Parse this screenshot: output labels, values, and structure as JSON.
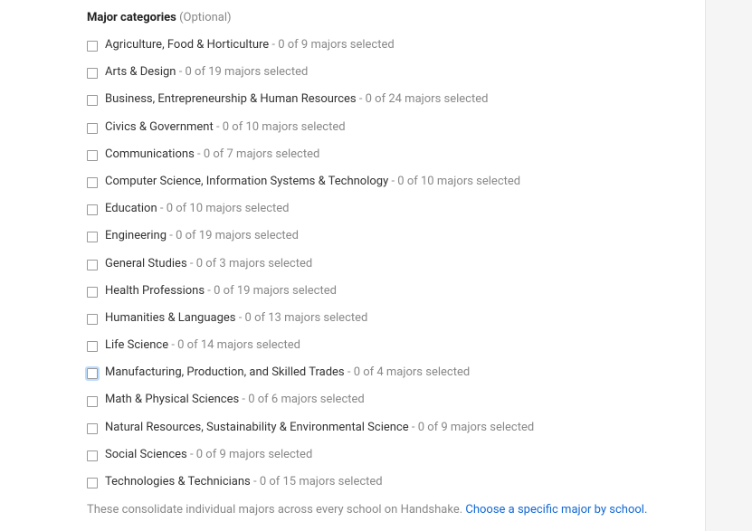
{
  "section": {
    "title": "Major categories",
    "optional_label": "(Optional)"
  },
  "categories": [
    {
      "label": "Agriculture, Food & Horticulture",
      "status": "0 of 9 majors selected",
      "focused": false
    },
    {
      "label": "Arts & Design",
      "status": "0 of 19 majors selected",
      "focused": false
    },
    {
      "label": "Business, Entrepreneurship & Human Resources",
      "status": "0 of 24 majors selected",
      "focused": false
    },
    {
      "label": "Civics & Government",
      "status": "0 of 10 majors selected",
      "focused": false
    },
    {
      "label": "Communications",
      "status": "0 of 7 majors selected",
      "focused": false
    },
    {
      "label": "Computer Science, Information Systems & Technology",
      "status": "0 of 10 majors selected",
      "focused": false
    },
    {
      "label": "Education",
      "status": "0 of 10 majors selected",
      "focused": false
    },
    {
      "label": "Engineering",
      "status": "0 of 19 majors selected",
      "focused": false
    },
    {
      "label": "General Studies",
      "status": "0 of 3 majors selected",
      "focused": false
    },
    {
      "label": "Health Professions",
      "status": "0 of 19 majors selected",
      "focused": false
    },
    {
      "label": "Humanities & Languages",
      "status": "0 of 13 majors selected",
      "focused": false
    },
    {
      "label": "Life Science",
      "status": "0 of 14 majors selected",
      "focused": false
    },
    {
      "label": "Manufacturing, Production, and Skilled Trades",
      "status": "0 of 4 majors selected",
      "focused": true
    },
    {
      "label": "Math & Physical Sciences",
      "status": "0 of 6 majors selected",
      "focused": false
    },
    {
      "label": "Natural Resources, Sustainability & Environmental Science",
      "status": "0 of 9 majors selected",
      "focused": false
    },
    {
      "label": "Social Sciences",
      "status": "0 of 9 majors selected",
      "focused": false
    },
    {
      "label": "Technologies & Technicians",
      "status": "0 of 15 majors selected",
      "focused": false
    }
  ],
  "footer": {
    "text": "These consolidate individual majors across every school on Handshake. ",
    "link_text": "Choose a specific major by school."
  },
  "colors": {
    "background": "#ffffff",
    "page_bg": "#f5f5f5",
    "text_primary": "#333333",
    "text_muted": "#888888",
    "link": "#1268d3",
    "checkbox_border": "#999999",
    "focus_ring": "#bcdcff"
  }
}
